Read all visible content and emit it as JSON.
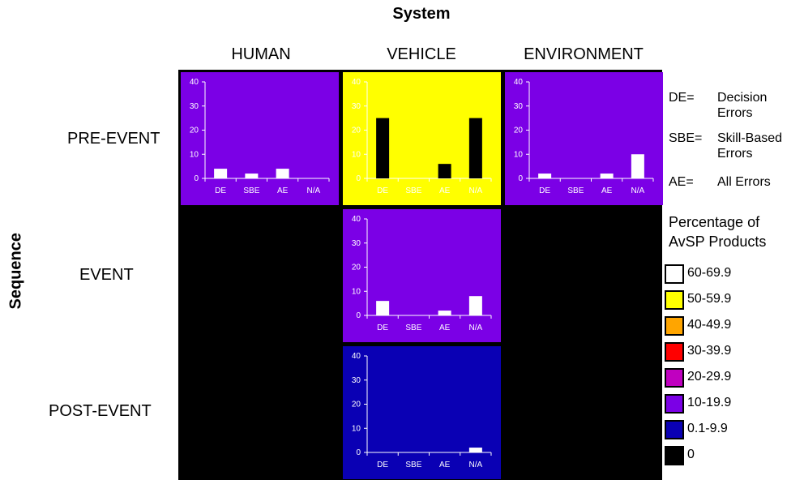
{
  "title": "System",
  "y_title": "Sequence",
  "columns": [
    "HUMAN",
    "VEHICLE",
    "ENVIRONMENT"
  ],
  "rows": [
    "PRE-EVENT",
    "EVENT",
    "POST-EVENT"
  ],
  "colors": {
    "purple": "#7B00E6",
    "yellow": "#FFFF00",
    "blue": "#0A00B4",
    "black": "#000000"
  },
  "abbrev_legend": [
    {
      "key": "DE=",
      "line1": "Decision",
      "line2": "Errors"
    },
    {
      "key": "SBE=",
      "line1": "Skill-Based",
      "line2": "Errors"
    },
    {
      "key": "AE=",
      "line1": "All Errors",
      "line2": ""
    }
  ],
  "color_legend": {
    "title_line1": "Percentage of",
    "title_line2": "AvSP Products",
    "items": [
      {
        "label": "60-69.9",
        "color": "#FFFFFF"
      },
      {
        "label": "50-59.9",
        "color": "#FFFF00"
      },
      {
        "label": "40-49.9",
        "color": "#FFA500"
      },
      {
        "label": "30-39.9",
        "color": "#FF0000"
      },
      {
        "label": "20-29.9",
        "color": "#C000C0"
      },
      {
        "label": "10-19.9",
        "color": "#7B00E6"
      },
      {
        "label": "0.1-9.9",
        "color": "#0A00B4"
      },
      {
        "label": "0",
        "color": "#000000"
      }
    ]
  },
  "chart_data": [
    {
      "type": "bar",
      "cell": "PRE-EVENT / HUMAN",
      "categories": [
        "DE",
        "SBE",
        "AE",
        "N/A"
      ],
      "values": [
        4,
        2,
        4,
        0
      ],
      "ylim": [
        0,
        40
      ],
      "yticks": [
        0,
        10,
        20,
        30,
        40
      ],
      "background": "#7B00E6",
      "bar_color": "#FFFFFF"
    },
    {
      "type": "bar",
      "cell": "PRE-EVENT / VEHICLE",
      "categories": [
        "DE",
        "SBE",
        "AE",
        "N/A"
      ],
      "values": [
        25,
        0,
        6,
        25
      ],
      "ylim": [
        0,
        40
      ],
      "yticks": [
        0,
        10,
        20,
        30,
        40
      ],
      "background": "#FFFF00",
      "bar_color": "#000000"
    },
    {
      "type": "bar",
      "cell": "PRE-EVENT / ENVIRONMENT",
      "categories": [
        "DE",
        "SBE",
        "AE",
        "N/A"
      ],
      "values": [
        2,
        0,
        2,
        10
      ],
      "ylim": [
        0,
        40
      ],
      "yticks": [
        0,
        10,
        20,
        30,
        40
      ],
      "background": "#7B00E6",
      "bar_color": "#FFFFFF"
    },
    {
      "type": "bar",
      "cell": "EVENT / VEHICLE",
      "categories": [
        "DE",
        "SBE",
        "AE",
        "N/A"
      ],
      "values": [
        6,
        0,
        2,
        8
      ],
      "ylim": [
        0,
        40
      ],
      "yticks": [
        0,
        10,
        20,
        30,
        40
      ],
      "background": "#7B00E6",
      "bar_color": "#FFFFFF"
    },
    {
      "type": "bar",
      "cell": "POST-EVENT / VEHICLE",
      "categories": [
        "DE",
        "SBE",
        "AE",
        "N/A"
      ],
      "values": [
        0,
        0,
        0,
        2
      ],
      "ylim": [
        0,
        40
      ],
      "yticks": [
        0,
        10,
        20,
        30,
        40
      ],
      "background": "#0A00B4",
      "bar_color": "#FFFFFF"
    }
  ]
}
